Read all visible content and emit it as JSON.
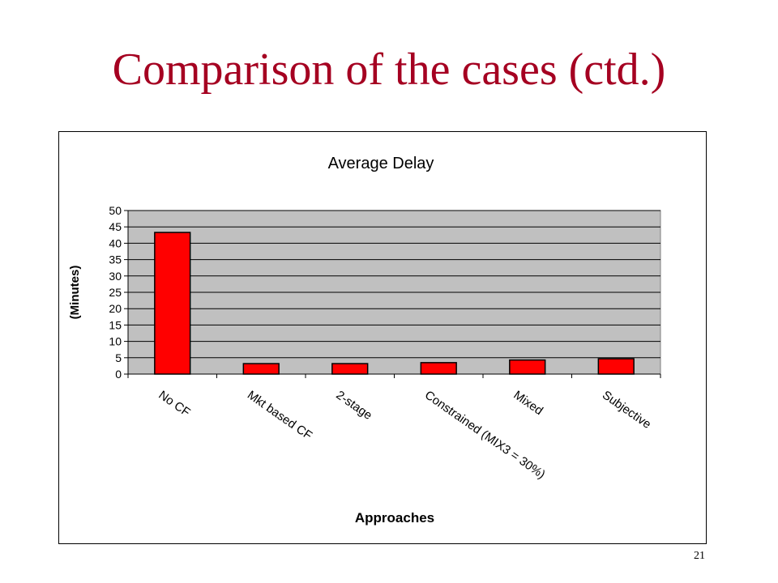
{
  "slide": {
    "title": "Comparison of the cases (ctd.)",
    "page_number": "21"
  },
  "colors": {
    "title": "#a50021",
    "bar_fill": "#ff0000",
    "plot_background": "#c0c0c0"
  },
  "chart_data": {
    "type": "bar",
    "title": "Average Delay",
    "xlabel": "Approaches",
    "ylabel": "(Minutes)",
    "categories": [
      "No CF",
      "Mkt based CF",
      "2-stage",
      "Constrained (MIX3 = 30%)",
      "Mixed",
      "Subjective"
    ],
    "values": [
      43.3,
      3.2,
      3.2,
      3.5,
      4.3,
      4.7
    ],
    "ylim": [
      0,
      50
    ],
    "yticks": [
      "0",
      "5",
      "10",
      "15",
      "20",
      "25",
      "30",
      "35",
      "40",
      "45",
      "50"
    ],
    "grid": true,
    "legend": "none"
  }
}
